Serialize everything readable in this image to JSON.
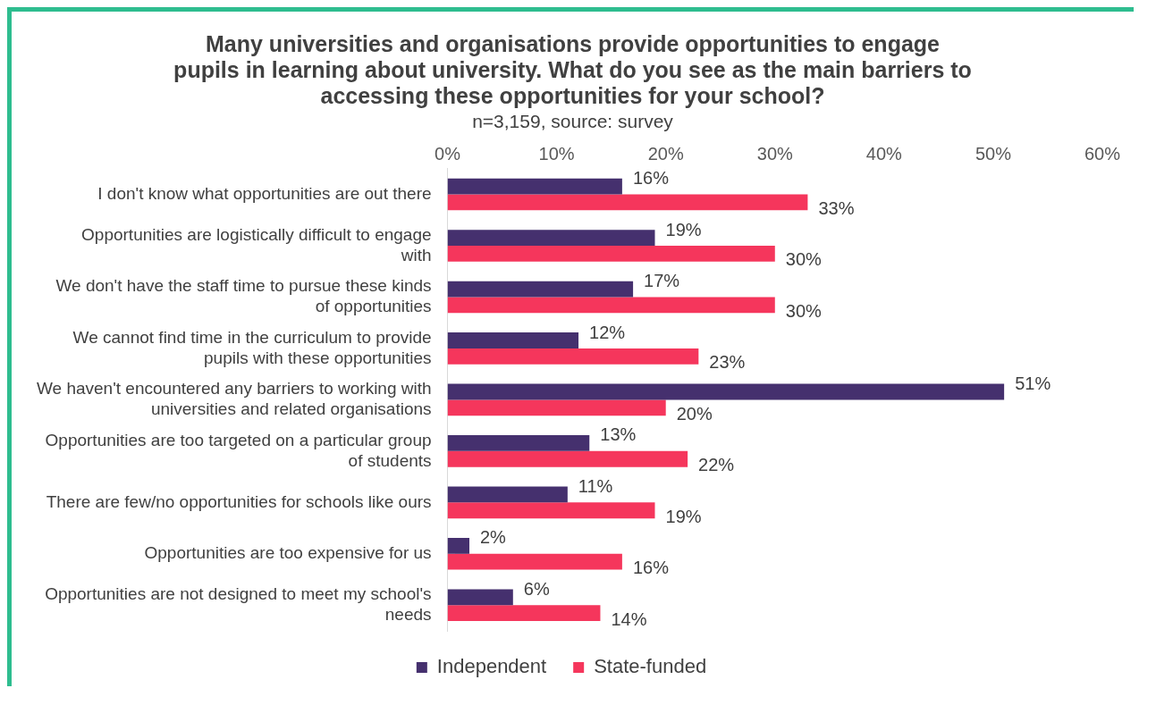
{
  "chart_data": {
    "type": "bar",
    "orientation": "horizontal",
    "title": "Many universities and organisations provide opportunities to engage pupils in learning about university. What do you see as the main barriers to accessing these opportunities for your school?",
    "subtitle": "n=3,159, source: survey",
    "categories": [
      "I don't know what opportunities are out there",
      "Opportunities are logistically difficult to engage with",
      "We don't have the staff time to pursue these kinds of opportunities",
      "We cannot find time in the curriculum to provide pupils with these opportunities",
      "We haven't encountered any barriers to working with universities and related organisations",
      "Opportunities are too targeted on a particular group of students",
      "There are few/no opportunities for schools like ours",
      "Opportunities are too expensive for us",
      "Opportunities are not designed to meet my school's needs"
    ],
    "series": [
      {
        "name": "Independent",
        "color": "#45306e",
        "values": [
          16,
          19,
          17,
          12,
          51,
          13,
          11,
          2,
          6
        ],
        "value_labels": [
          "16%",
          "19%",
          "17%",
          "12%",
          "51%",
          "13%",
          "11%",
          "2%",
          "6%"
        ]
      },
      {
        "name": "State-funded",
        "color": "#f5365c",
        "values": [
          33,
          30,
          30,
          23,
          20,
          22,
          19,
          16,
          14
        ],
        "value_labels": [
          "33%",
          "30%",
          "30%",
          "23%",
          "20%",
          "22%",
          "19%",
          "16%",
          "14%"
        ]
      }
    ],
    "xlim": [
      0,
      60
    ],
    "xticks": [
      {
        "value": 0,
        "label": "0%"
      },
      {
        "value": 10,
        "label": "10%"
      },
      {
        "value": 20,
        "label": "20%"
      },
      {
        "value": 30,
        "label": "30%"
      },
      {
        "value": 40,
        "label": "40%"
      },
      {
        "value": 50,
        "label": "50%"
      },
      {
        "value": 60,
        "label": "60%"
      }
    ],
    "grid": false,
    "legend": "bottom"
  }
}
